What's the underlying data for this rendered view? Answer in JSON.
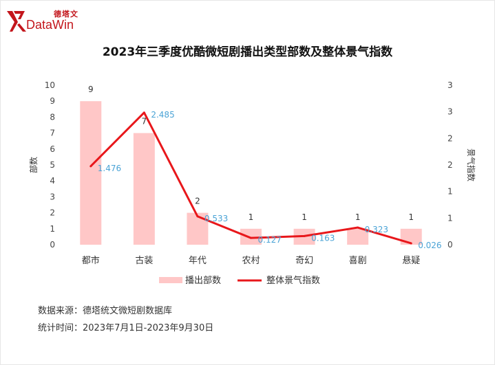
{
  "brand": {
    "cn": "德塔文",
    "en": "DataWin",
    "color": "#c3161c"
  },
  "title": "2023年三季度优酷微短剧播出类型部数及整体景气指数",
  "chart_data": {
    "type": "bar",
    "categories": [
      "都市",
      "古装",
      "年代",
      "农村",
      "奇幻",
      "喜剧",
      "悬疑"
    ],
    "series": [
      {
        "name": "播出部数",
        "type": "bar",
        "axis": "left",
        "values": [
          9,
          7,
          2,
          1,
          1,
          1,
          1
        ],
        "color": "#ffc7c7"
      },
      {
        "name": "整体景气指数",
        "type": "line",
        "axis": "right",
        "values": [
          1.476,
          2.485,
          0.533,
          0.127,
          0.163,
          0.323,
          0.026
        ],
        "color": "#e8171b"
      }
    ],
    "ylabel": "部数",
    "ylabel_right": "景气指数",
    "ylim": [
      0,
      10
    ],
    "ylim_right": [
      0,
      3
    ],
    "y_ticks": [
      "0",
      "1",
      "2",
      "3",
      "4",
      "5",
      "6",
      "7",
      "8",
      "9",
      "10"
    ],
    "y_ticks_right": [
      "0",
      "1",
      "1",
      "2",
      "2",
      "3",
      "3"
    ],
    "legend_position": "bottom",
    "grid": false
  },
  "footer": {
    "source": "数据来源：德塔统文微短剧数据库",
    "period": "统计时间：2023年7月1日-2023年9月30日"
  }
}
